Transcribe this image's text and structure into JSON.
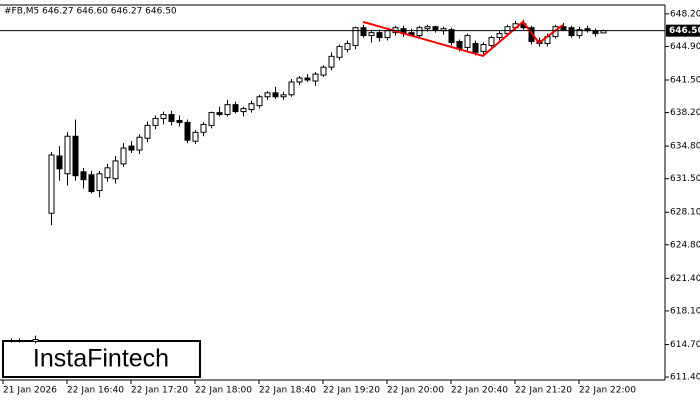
{
  "chart_data": {
    "type": "candlestick",
    "title": "#FB,M5  646.27 646.60 646.27 646.50",
    "watermark": "InstaFintech",
    "categories": [
      "21 Jan 2026",
      null,
      null,
      null,
      null,
      null,
      null,
      null,
      "22 Jan 16:40",
      null,
      null,
      null,
      null,
      null,
      null,
      null,
      "22 Jan 17:20",
      null,
      null,
      null,
      null,
      null,
      null,
      null,
      "22 Jan 18:00",
      null,
      null,
      null,
      null,
      null,
      null,
      null,
      "22 Jan 18:40",
      null,
      null,
      null,
      null,
      null,
      null,
      null,
      "22 Jan 19:20",
      null,
      null,
      null,
      null,
      null,
      null,
      null,
      "22 Jan 20:00",
      null,
      null,
      null,
      null,
      null,
      null,
      null,
      "22 Jan 20:40",
      null,
      null,
      null,
      null,
      null,
      null,
      null,
      "22 Jan 21:20",
      null,
      null,
      null,
      null,
      null,
      null,
      null,
      "22 Jan 22:00",
      null,
      null,
      null
    ],
    "open": [
      null,
      615.0,
      615.1,
      null,
      615.0,
      null,
      628.0,
      633.8,
      632.0,
      635.8,
      632.2,
      631.9,
      630.3,
      631.6,
      631.5,
      633.0,
      634.8,
      634.4,
      635.6,
      636.9,
      637.6,
      638.0,
      637.4,
      637.2,
      635.3,
      636.2,
      636.9,
      638.2,
      638.0,
      639.0,
      638.3,
      638.5,
      638.9,
      639.8,
      640.2,
      639.8,
      640.0,
      641.3,
      641.7,
      641.4,
      642.0,
      642.8,
      643.8,
      644.6,
      645.0,
      646.8,
      646.0,
      646.3,
      645.8,
      646.3,
      646.7,
      646.3,
      646.0,
      646.7,
      646.9,
      646.5,
      646.6,
      645.4,
      644.8,
      645.2,
      644.4,
      645.0,
      645.8,
      646.2,
      646.8,
      647.2,
      646.8,
      645.5,
      645.2,
      645.9,
      646.9,
      646.8,
      646.0,
      646.7,
      646.5,
      646.27
    ],
    "high": [
      null,
      615.3,
      615.3,
      null,
      615.6,
      null,
      634.2,
      634.8,
      636.2,
      637.5,
      632.6,
      632.3,
      632.3,
      633.0,
      633.8,
      635.1,
      635.3,
      636.0,
      637.3,
      637.9,
      638.3,
      638.4,
      637.9,
      637.5,
      636.4,
      637.2,
      638.3,
      638.8,
      639.5,
      639.3,
      638.8,
      639.4,
      640.0,
      640.4,
      640.8,
      640.3,
      641.6,
      641.9,
      642.1,
      642.3,
      643.0,
      644.3,
      645.1,
      645.5,
      646.9,
      647.1,
      646.6,
      646.6,
      646.8,
      647.0,
      647.0,
      646.7,
      647.0,
      647.1,
      647.0,
      646.9,
      646.8,
      645.6,
      646.2,
      645.5,
      645.3,
      646.0,
      646.5,
      647.1,
      647.5,
      647.6,
      647.0,
      645.8,
      646.2,
      647.1,
      647.3,
      647.0,
      646.9,
      647.0,
      646.7,
      646.6
    ],
    "low": [
      null,
      614.9,
      614.9,
      null,
      614.8,
      null,
      626.8,
      631.3,
      630.8,
      631.3,
      630.5,
      630.0,
      629.6,
      631.2,
      631.0,
      632.7,
      634.1,
      634.0,
      635.2,
      636.5,
      637.0,
      636.9,
      636.8,
      635.1,
      635.0,
      635.8,
      636.6,
      637.8,
      637.8,
      638.1,
      637.8,
      638.2,
      638.6,
      639.5,
      639.6,
      639.5,
      639.8,
      641.0,
      641.3,
      640.9,
      641.8,
      642.5,
      643.5,
      644.3,
      644.6,
      645.8,
      645.3,
      645.4,
      645.5,
      646.0,
      645.9,
      645.9,
      645.8,
      646.4,
      646.3,
      646.1,
      645.0,
      644.4,
      644.5,
      644.0,
      644.1,
      644.8,
      645.5,
      645.9,
      646.6,
      646.6,
      645.1,
      644.9,
      644.9,
      645.7,
      646.5,
      645.8,
      645.7,
      646.3,
      645.9,
      646.27
    ],
    "close": [
      null,
      615.1,
      615.0,
      null,
      615.2,
      null,
      633.9,
      632.5,
      635.8,
      631.8,
      631.4,
      630.2,
      632.0,
      632.6,
      633.3,
      634.6,
      634.4,
      635.7,
      636.9,
      637.6,
      638.0,
      637.3,
      637.2,
      635.4,
      636.2,
      637.0,
      638.2,
      638.0,
      639.0,
      638.3,
      638.6,
      639.1,
      639.8,
      640.2,
      639.8,
      640.0,
      641.3,
      641.7,
      641.5,
      642.1,
      642.8,
      643.9,
      644.9,
      645.2,
      646.8,
      646.0,
      646.3,
      645.8,
      646.5,
      646.8,
      646.2,
      646.0,
      646.8,
      646.9,
      646.6,
      646.7,
      645.3,
      644.7,
      646.0,
      644.3,
      645.1,
      645.8,
      646.2,
      646.9,
      647.2,
      646.8,
      645.4,
      645.2,
      645.9,
      646.9,
      646.6,
      646.0,
      646.6,
      646.5,
      646.2,
      646.5
    ],
    "pattern": {
      "color": "#ff0000",
      "x": [
        45,
        60,
        65,
        67,
        70
      ],
      "values": [
        647.39,
        643.94,
        647.39,
        645.26,
        647.08
      ]
    },
    "last_price": {
      "value": 646.5,
      "label": "646.50"
    },
    "ylim": [
      611.1,
      649.1
    ],
    "yticks": [
      {
        "value": 648.2,
        "label": "648.20"
      },
      {
        "value": 644.9,
        "label": "644.90"
      },
      {
        "value": 641.5,
        "label": "641.50"
      },
      {
        "value": 638.2,
        "label": "638.20"
      },
      {
        "value": 634.8,
        "label": "634.80"
      },
      {
        "value": 631.5,
        "label": "631.50"
      },
      {
        "value": 628.1,
        "label": "628.10"
      },
      {
        "value": 624.8,
        "label": "624.80"
      },
      {
        "value": 621.4,
        "label": "621.40"
      },
      {
        "value": 618.1,
        "label": "618.10"
      },
      {
        "value": 614.7,
        "label": "614.70"
      },
      {
        "value": 611.4,
        "label": "611.40"
      }
    ]
  }
}
